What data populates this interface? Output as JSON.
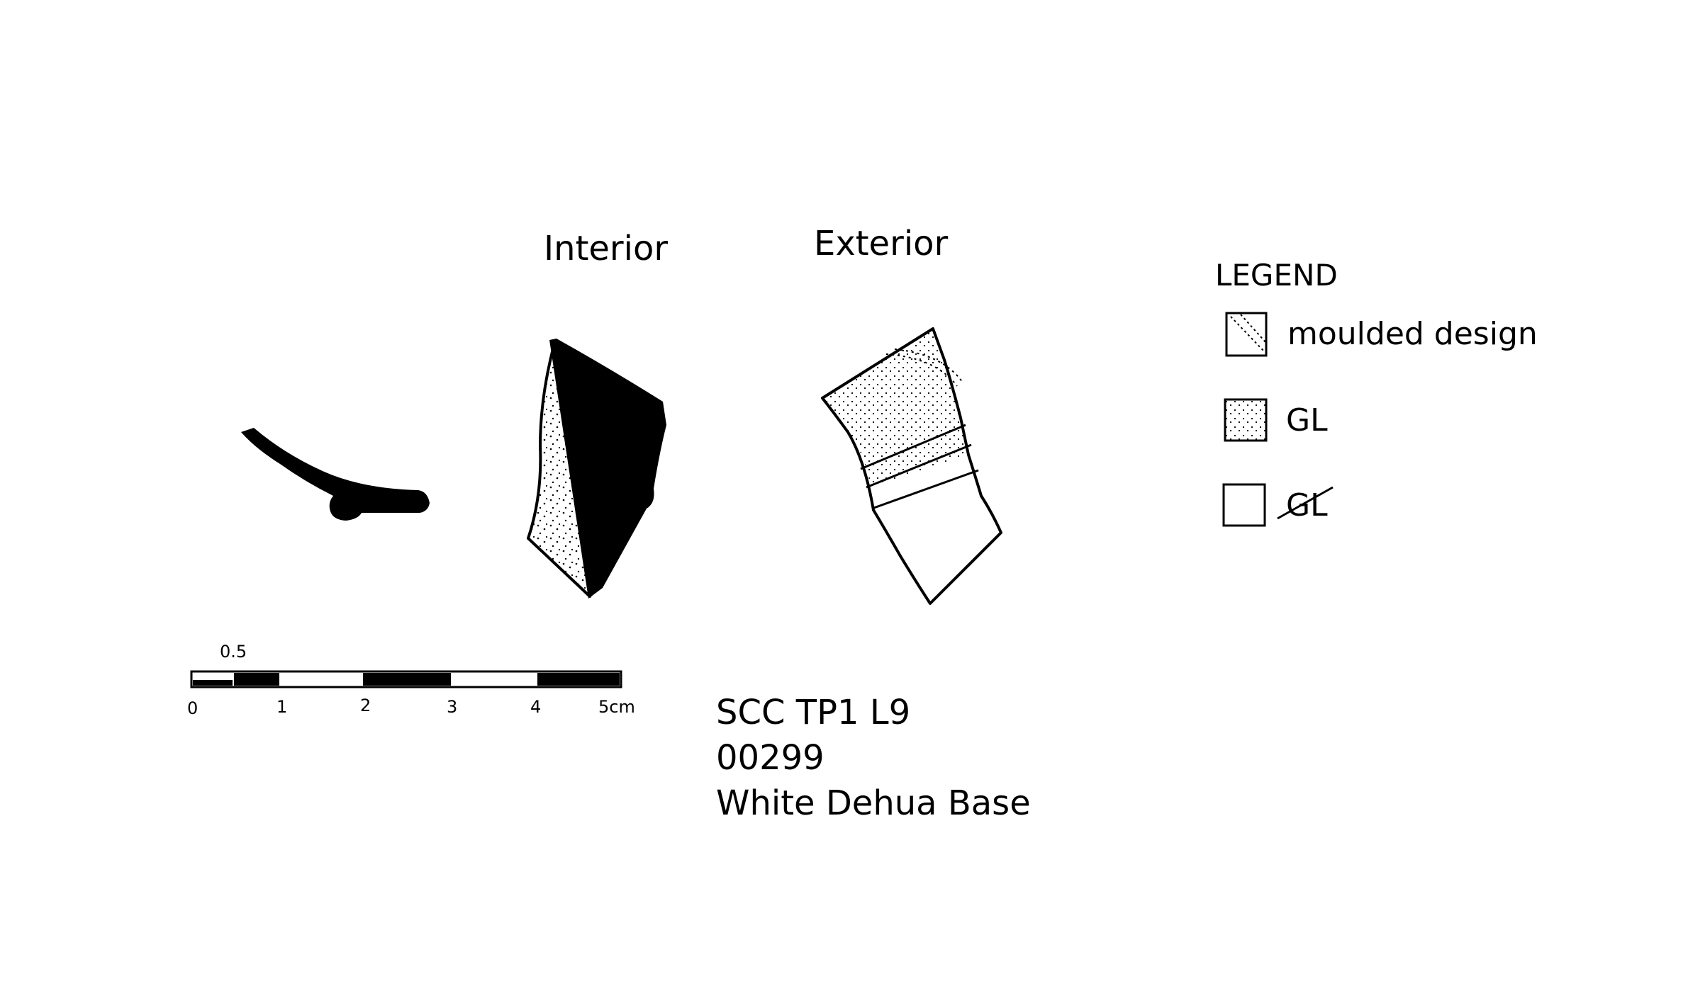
{
  "views": {
    "interior_label": "Interior",
    "exterior_label": "Exterior"
  },
  "legend": {
    "title": "LEGEND",
    "items": [
      {
        "symbol": "diagonal-dotted-square-icon",
        "label": "moulded design"
      },
      {
        "symbol": "stippled-square-icon",
        "label": "GL"
      },
      {
        "symbol": "empty-square-icon",
        "label": "GL",
        "struck_through": true
      }
    ]
  },
  "scale_bar": {
    "sub_label": "0.5",
    "tick_labels": [
      "0",
      "1",
      "2",
      "3",
      "4",
      "5cm"
    ]
  },
  "catalog": {
    "site_context": "SCC TP1 L9",
    "number": "00299",
    "description": "White Dehua Base"
  },
  "colors": {
    "ink": "#000000",
    "paper": "#ffffff"
  }
}
